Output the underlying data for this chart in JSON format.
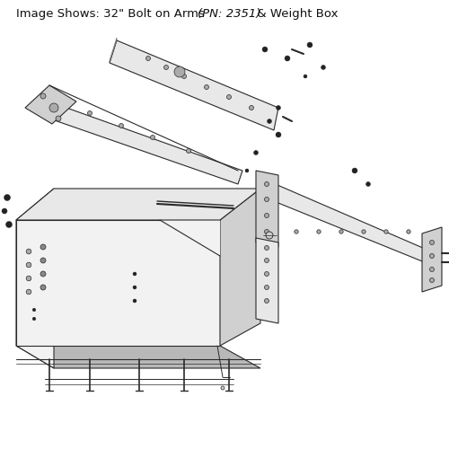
{
  "title_part1": "Image Shows: 32\" Bolt on Arms ",
  "title_part2": "(PN: 2351)",
  "title_part3": " & Weight Box",
  "bg_color": "#ffffff",
  "line_color": "#2a2a2a",
  "fill_light": "#e8e8e8",
  "fill_mid": "#d0d0d0",
  "fill_dark": "#b8b8b8",
  "fill_white": "#f2f2f2",
  "figsize": [
    5.0,
    5.0
  ],
  "dpi": 100
}
